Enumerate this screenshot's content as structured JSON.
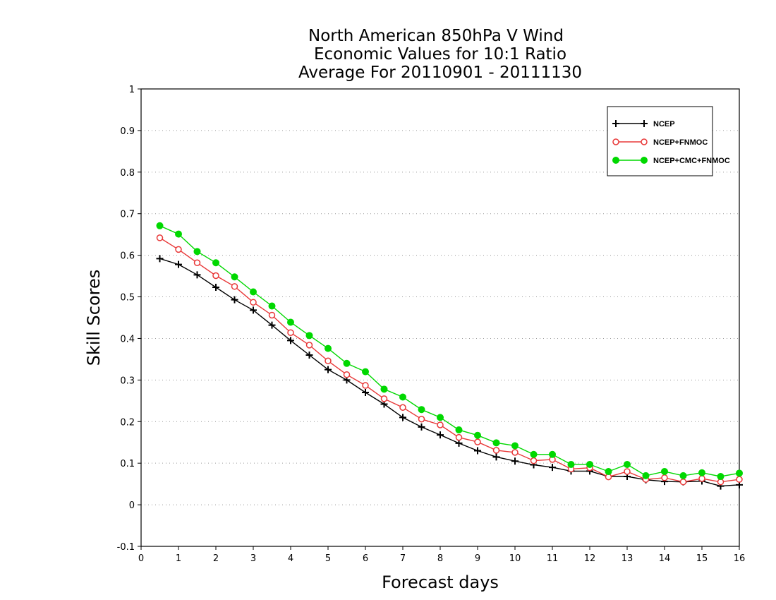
{
  "chart_data": {
    "type": "line",
    "title": [
      "North American 850hPa V Wind",
      "Economic Values for 10:1 Ratio",
      "Average For 20110901 - 20111130"
    ],
    "xlabel": "Forecast days",
    "ylabel": "Skill Scores",
    "xlim": [
      0,
      16
    ],
    "ylim": [
      -0.1,
      1
    ],
    "x_ticks": [
      0,
      1,
      2,
      3,
      4,
      5,
      6,
      7,
      8,
      9,
      10,
      11,
      12,
      13,
      14,
      15,
      16
    ],
    "y_ticks": [
      -0.1,
      0,
      0.1,
      0.2,
      0.3,
      0.4,
      0.5,
      0.6,
      0.7,
      0.8,
      0.9,
      1
    ],
    "y_tick_labels": [
      "-0.1",
      "0",
      "0.1",
      "0.2",
      "0.3",
      "0.4",
      "0.5",
      "0.6",
      "0.7",
      "0.8",
      "0.9",
      "1"
    ],
    "grid": "horizontal dotted",
    "legend_position": "top-right",
    "x": [
      0.5,
      1,
      1.5,
      2,
      2.5,
      3,
      3.5,
      4,
      4.5,
      5,
      5.5,
      6,
      6.5,
      7,
      7.5,
      8,
      8.5,
      9,
      9.5,
      10,
      10.5,
      11,
      11.5,
      12,
      12.5,
      13,
      13.5,
      14,
      14.5,
      15,
      15.5,
      16
    ],
    "series": [
      {
        "name": "NCEP",
        "color": "#000000",
        "marker": "plus",
        "values": [
          0.592,
          0.578,
          0.553,
          0.523,
          0.493,
          0.468,
          0.432,
          0.395,
          0.36,
          0.325,
          0.3,
          0.27,
          0.242,
          0.21,
          0.187,
          0.168,
          0.148,
          0.13,
          0.115,
          0.105,
          0.096,
          0.09,
          0.081,
          0.081,
          0.068,
          0.068,
          0.06,
          0.056,
          0.055,
          0.057,
          0.045,
          0.048
        ]
      },
      {
        "name": "NCEP+FNMOC",
        "color": "#e83838",
        "marker": "open-circle",
        "values": [
          0.642,
          0.614,
          0.582,
          0.551,
          0.525,
          0.487,
          0.456,
          0.414,
          0.384,
          0.346,
          0.313,
          0.287,
          0.255,
          0.234,
          0.206,
          0.192,
          0.162,
          0.151,
          0.131,
          0.126,
          0.106,
          0.109,
          0.086,
          0.089,
          0.067,
          0.08,
          0.061,
          0.065,
          0.055,
          0.063,
          0.055,
          0.061
        ]
      },
      {
        "name": "NCEP+CMC+FNMOC",
        "color": "#00d800",
        "marker": "filled-circle",
        "values": [
          0.671,
          0.651,
          0.609,
          0.582,
          0.548,
          0.512,
          0.478,
          0.439,
          0.407,
          0.376,
          0.34,
          0.32,
          0.278,
          0.259,
          0.229,
          0.21,
          0.18,
          0.167,
          0.149,
          0.142,
          0.121,
          0.121,
          0.097,
          0.097,
          0.08,
          0.097,
          0.07,
          0.08,
          0.07,
          0.077,
          0.068,
          0.076
        ]
      }
    ]
  }
}
